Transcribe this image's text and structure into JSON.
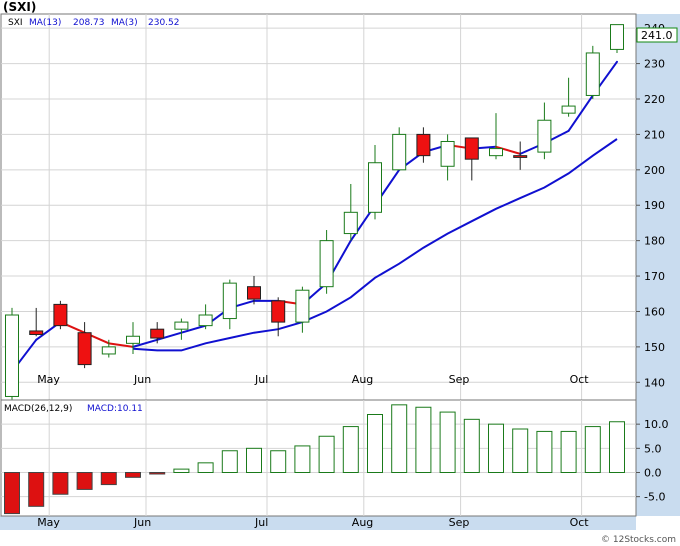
{
  "header": {
    "title": "(SXI)",
    "legend_symbol": "SXI",
    "ma13_label": "MA(13)",
    "ma13_value": "208.73",
    "ma3_label": "MA(3)",
    "ma3_value": "230.52"
  },
  "price_panel": {
    "last_price_badge": "241.0"
  },
  "macd_panel": {
    "label": "MACD(26,12,9)",
    "value_label": "MACD:10.11"
  },
  "footer": {
    "watermark": "© 12Stocks.com"
  },
  "colors": {
    "up_candle_border": "#1a7a1a",
    "down_candle_fill": "#ee1111",
    "ma13_line": "#1010d0",
    "ma3_line": "#1010d0",
    "ma3_down_line": "#dd1111",
    "axis_band": "#c9dcef",
    "badge_border": "#118811"
  },
  "chart_data": [
    {
      "type": "candlestick",
      "title": "(SXI)",
      "x_tick_labels": [
        "May",
        "Jun",
        "Jul",
        "Aug",
        "Sep",
        "Oct"
      ],
      "x_tick_index": [
        1,
        5,
        10,
        14,
        18,
        23
      ],
      "y_ticks": [
        140,
        150,
        160,
        170,
        180,
        190,
        200,
        210,
        220,
        230,
        240
      ],
      "ylim": [
        135,
        244
      ],
      "grid": true,
      "candles": [
        {
          "open": 136,
          "high": 161,
          "low": 135,
          "close": 159
        },
        {
          "open": 154.5,
          "high": 161,
          "low": 153,
          "close": 153.5
        },
        {
          "open": 162,
          "high": 163,
          "low": 155,
          "close": 156
        },
        {
          "open": 154,
          "high": 157,
          "low": 144,
          "close": 145
        },
        {
          "open": 148,
          "high": 152,
          "low": 147,
          "close": 150
        },
        {
          "open": 151,
          "high": 157,
          "low": 148,
          "close": 153
        },
        {
          "open": 155,
          "high": 157,
          "low": 151,
          "close": 152.5
        },
        {
          "open": 155,
          "high": 158,
          "low": 152,
          "close": 157
        },
        {
          "open": 156,
          "high": 162,
          "low": 155,
          "close": 159
        },
        {
          "open": 158,
          "high": 169,
          "low": 155,
          "close": 168
        },
        {
          "open": 167,
          "high": 170,
          "low": 162,
          "close": 163.5
        },
        {
          "open": 163,
          "high": 164,
          "low": 153,
          "close": 157
        },
        {
          "open": 157,
          "high": 167,
          "low": 154,
          "close": 166
        },
        {
          "open": 167,
          "high": 183,
          "low": 165,
          "close": 180
        },
        {
          "open": 182,
          "high": 196,
          "low": 180,
          "close": 188
        },
        {
          "open": 188,
          "high": 207,
          "low": 186,
          "close": 202
        },
        {
          "open": 200,
          "high": 212,
          "low": 200,
          "close": 210
        },
        {
          "open": 210,
          "high": 212,
          "low": 202,
          "close": 204
        },
        {
          "open": 201,
          "high": 210,
          "low": 197,
          "close": 208
        },
        {
          "open": 209,
          "high": 209,
          "low": 197,
          "close": 203
        },
        {
          "open": 204,
          "high": 216,
          "low": 203,
          "close": 206
        },
        {
          "open": 204,
          "high": 208,
          "low": 200,
          "close": 203.5
        },
        {
          "open": 205,
          "high": 219,
          "low": 203,
          "close": 214
        },
        {
          "open": 216,
          "high": 226,
          "low": 215,
          "close": 218
        },
        {
          "open": 221,
          "high": 235,
          "low": 220,
          "close": 233
        },
        {
          "open": 234,
          "high": 241,
          "low": 233,
          "close": 241
        }
      ],
      "series": [
        {
          "name": "MA(13)",
          "values": [
            null,
            null,
            null,
            null,
            null,
            149.5,
            149,
            149,
            151,
            152.5,
            154,
            155,
            157,
            160,
            164,
            169.5,
            173.5,
            178,
            182,
            185.5,
            189,
            192,
            195,
            199,
            204,
            208.7
          ]
        },
        {
          "name": "MA(3)",
          "values": [
            143,
            152,
            157,
            154,
            151,
            150,
            152,
            154,
            156,
            161,
            163,
            163,
            162,
            168,
            180,
            190,
            200,
            205,
            207,
            206,
            206.5,
            204.5,
            207.5,
            211,
            221,
            230.5
          ]
        }
      ]
    },
    {
      "type": "bar",
      "title": "MACD(26,12,9)",
      "x_tick_labels": [
        "May",
        "Jun",
        "Jul",
        "Aug",
        "Sep",
        "Oct"
      ],
      "y_ticks": [
        -5.0,
        0.0,
        5.0,
        10.0
      ],
      "ylim": [
        -9,
        15
      ],
      "values": [
        -8.5,
        -7,
        -4.5,
        -3.5,
        -2.5,
        -1,
        -0.3,
        0.7,
        2,
        4.5,
        5,
        4.5,
        5.5,
        7.5,
        9.5,
        12,
        14,
        13.5,
        12.5,
        11,
        10,
        9,
        8.5,
        8.5,
        9.5,
        10.5
      ]
    }
  ]
}
